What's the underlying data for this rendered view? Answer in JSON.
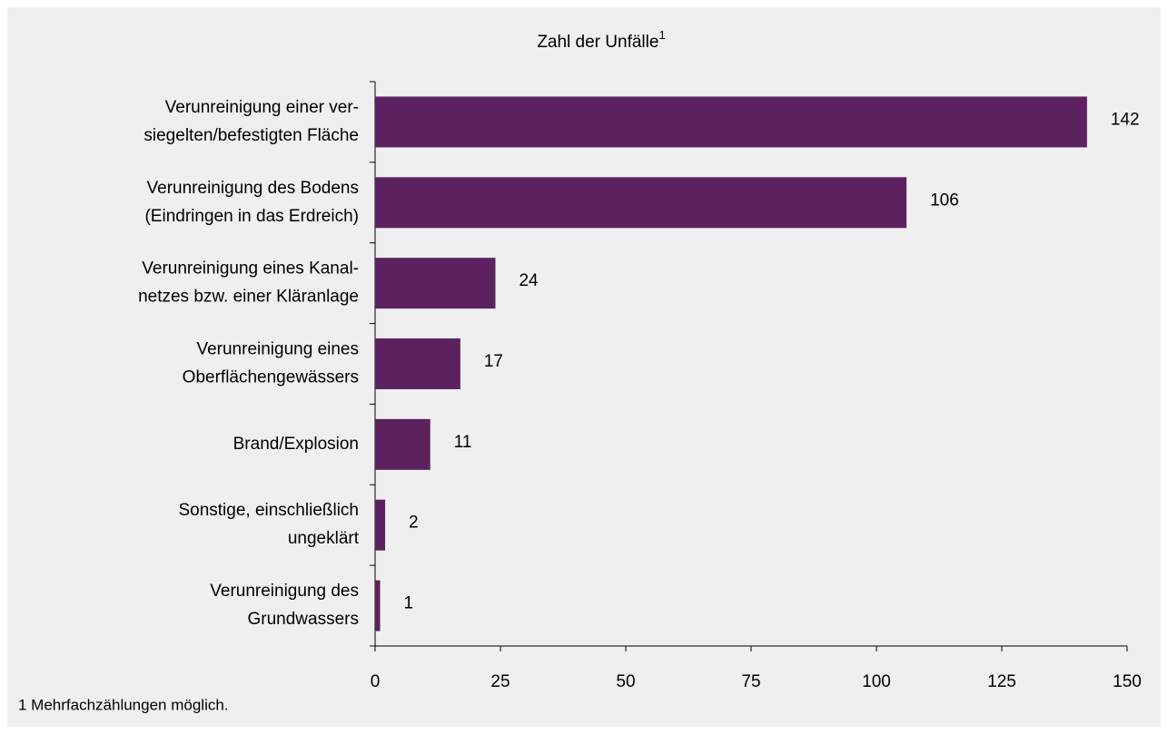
{
  "chart_data": {
    "type": "hbar",
    "title": "Zahl der Unfälle",
    "title_note": "1",
    "footnote": "1 Mehrfachzählungen möglich.",
    "categories": [
      [
        "Verunreinigung einer ver-",
        "siegelten/befestigten Fläche"
      ],
      [
        "Verunreinigung des Bodens",
        "(Eindringen in das Erdreich)"
      ],
      [
        "Verunreinigung eines Kanal-",
        "netzes bzw. einer Kläranlage"
      ],
      [
        "Verunreinigung eines",
        "Oberflächengewässers"
      ],
      [
        "Brand/Explosion"
      ],
      [
        "Sonstige, einschließlich",
        "ungeklärt"
      ],
      [
        "Verunreinigung des",
        "Grundwassers"
      ]
    ],
    "values": [
      142,
      106,
      24,
      17,
      11,
      2,
      1
    ],
    "color": "#5c2260",
    "xlim": [
      0,
      150
    ],
    "xticks": [
      0,
      25,
      50,
      75,
      100,
      125,
      150
    ]
  }
}
